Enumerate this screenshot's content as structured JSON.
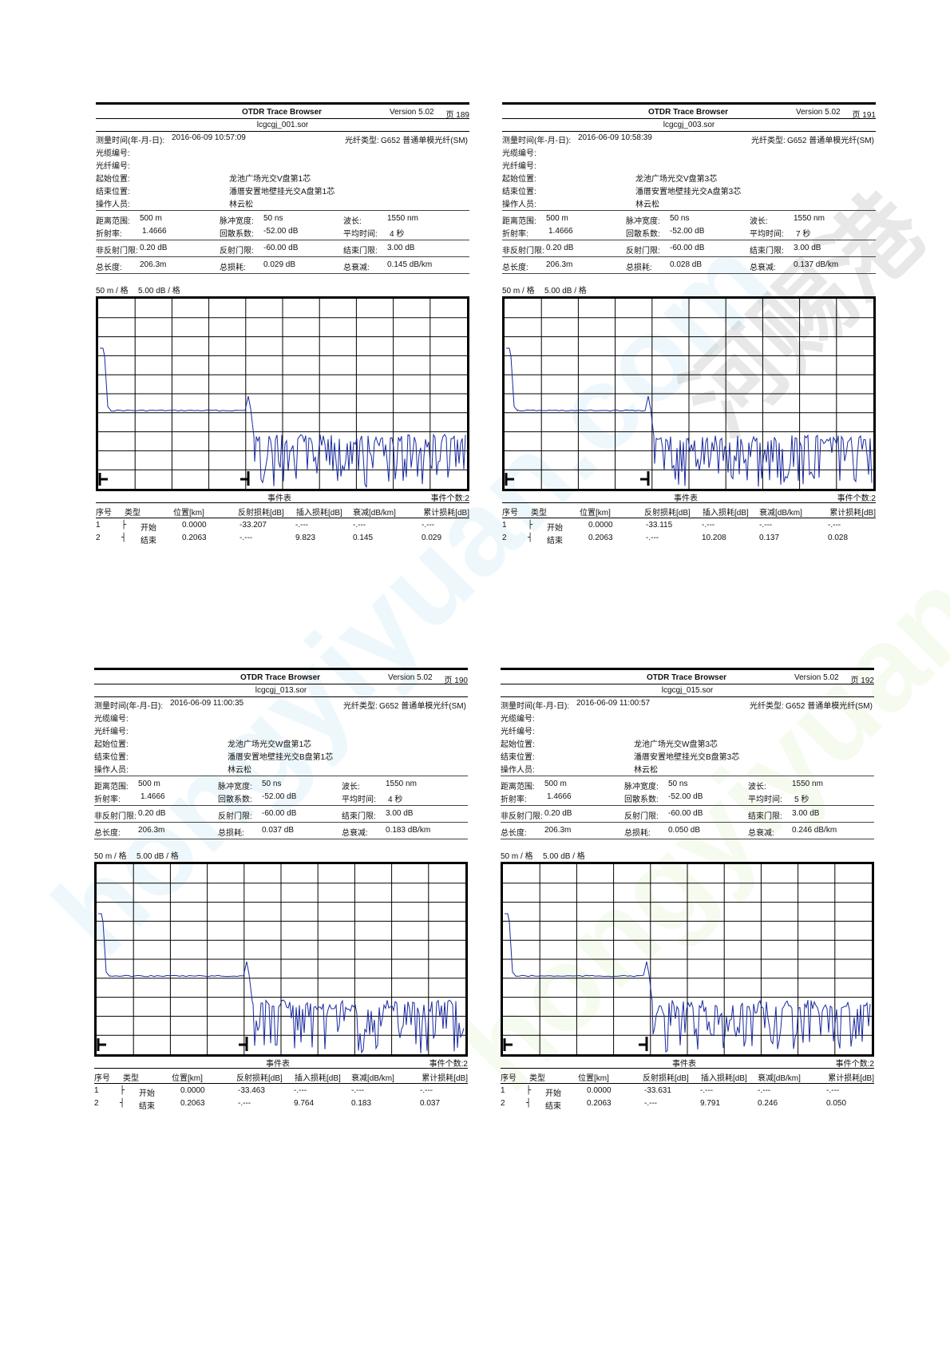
{
  "reports": [
    {
      "app": "OTDR Trace Browser",
      "version": "Version 5.02",
      "page": "页 189",
      "file": "lcgcgj_001.sor",
      "time_label": "测量时间(年-月-日):",
      "time_value": "2016-06-09  10:57:09",
      "fiber_type_label": "光纤类型:",
      "fiber_type_value": "G652 普通单模光纤(SM)",
      "cable_no_label": "光缆编号:",
      "fiber_no_label": "光纤编号:",
      "start_label": "起始位置:",
      "start_value": "龙池广场光交V盘第1芯",
      "end_label": "结束位置:",
      "end_value": "潘厝安置地壁挂光交A盘第1芯",
      "operator_label": "操作人员:",
      "operator_value": "林云松",
      "range_label": "距离范围:",
      "range_value": "500 m",
      "pulse_label": "脉冲宽度:",
      "pulse_value": "50 ns",
      "wave_label": "波长:",
      "wave_value": "1550 nm",
      "ior_label": "折射率:",
      "ior_value": "1.4666",
      "bs_label": "回散系数:",
      "bs_value": "-52.00 dB",
      "avg_label": "平均时间:",
      "avg_value": "4 秒",
      "nonrefl_label": "非反射门限:",
      "nonrefl_value": "0.20 dB",
      "refl_label": "反射门限:",
      "refl_value": "-60.00 dB",
      "endth_label": "结束门限:",
      "endth_value": "3.00 dB",
      "len_label": "总长度:",
      "len_value": "206.3m",
      "loss_label": "总损耗:",
      "loss_value": "0.029 dB",
      "att_label": "总衰减:",
      "att_value": "0.145 dB/km",
      "scale_x": "50 m / 格",
      "scale_y": "5.00 dB / 格",
      "event_table_label": "事件表",
      "event_count": "事件个数:2",
      "headers": [
        "序号",
        "类型",
        "位置[km]",
        "反射损耗[dB]",
        "插入损耗[dB]",
        "衰减[dB/km]",
        "累计损耗[dB]"
      ],
      "events": [
        {
          "no": "1",
          "type": "开始",
          "pos": "0.0000",
          "refl": "-33.207",
          "ins": "-.---",
          "att": "-.---",
          "cum": "-.---"
        },
        {
          "no": "2",
          "type": "结束",
          "pos": "0.2063",
          "refl": "-.---",
          "ins": "9.823",
          "att": "0.145",
          "cum": "0.029"
        }
      ]
    },
    {
      "app": "OTDR Trace Browser",
      "version": "Version 5.02",
      "page": "页 191",
      "file": "lcgcgj_003.sor",
      "time_label": "测量时间(年-月-日):",
      "time_value": "2016-06-09  10:58:39",
      "fiber_type_label": "光纤类型:",
      "fiber_type_value": "G652 普通单模光纤(SM)",
      "cable_no_label": "光缆编号:",
      "fiber_no_label": "光纤编号:",
      "start_label": "起始位置:",
      "start_value": "龙池广场光交V盘第3芯",
      "end_label": "结束位置:",
      "end_value": "潘厝安置地壁挂光交A盘第3芯",
      "operator_label": "操作人员:",
      "operator_value": "林云松",
      "range_label": "距离范围:",
      "range_value": "500 m",
      "pulse_label": "脉冲宽度:",
      "pulse_value": "50 ns",
      "wave_label": "波长:",
      "wave_value": "1550 nm",
      "ior_label": "折射率:",
      "ior_value": "1.4666",
      "bs_label": "回散系数:",
      "bs_value": "-52.00 dB",
      "avg_label": "平均时间:",
      "avg_value": "7 秒",
      "nonrefl_label": "非反射门限:",
      "nonrefl_value": "0.20 dB",
      "refl_label": "反射门限:",
      "refl_value": "-60.00 dB",
      "endth_label": "结束门限:",
      "endth_value": "3.00 dB",
      "len_label": "总长度:",
      "len_value": "206.3m",
      "loss_label": "总损耗:",
      "loss_value": "0.028 dB",
      "att_label": "总衰减:",
      "att_value": "0.137 dB/km",
      "scale_x": "50 m / 格",
      "scale_y": "5.00 dB / 格",
      "event_table_label": "事件表",
      "event_count": "事件个数:2",
      "headers": [
        "序号",
        "类型",
        "位置[km]",
        "反射损耗[dB]",
        "插入损耗[dB]",
        "衰减[dB/km]",
        "累计损耗[dB]"
      ],
      "events": [
        {
          "no": "1",
          "type": "开始",
          "pos": "0.0000",
          "refl": "-33.115",
          "ins": "-.---",
          "att": "-.---",
          "cum": "-.---"
        },
        {
          "no": "2",
          "type": "结束",
          "pos": "0.2063",
          "refl": "-.---",
          "ins": "10.208",
          "att": "0.137",
          "cum": "0.028"
        }
      ]
    },
    {
      "app": "OTDR Trace Browser",
      "version": "Version 5.02",
      "page": "页 190",
      "file": "lcgcgj_013.sor",
      "time_label": "测量时间(年-月-日):",
      "time_value": "2016-06-09  11:00:35",
      "fiber_type_label": "光纤类型:",
      "fiber_type_value": "G652 普通单模光纤(SM)",
      "cable_no_label": "光缆编号:",
      "fiber_no_label": "光纤编号:",
      "start_label": "起始位置:",
      "start_value": "龙池广场光交W盘第1芯",
      "end_label": "结束位置:",
      "end_value": "潘厝安置地壁挂光交B盘第1芯",
      "operator_label": "操作人员:",
      "operator_value": "林云松",
      "range_label": "距离范围:",
      "range_value": "500 m",
      "pulse_label": "脉冲宽度:",
      "pulse_value": "50 ns",
      "wave_label": "波长:",
      "wave_value": "1550 nm",
      "ior_label": "折射率:",
      "ior_value": "1.4666",
      "bs_label": "回散系数:",
      "bs_value": "-52.00 dB",
      "avg_label": "平均时间:",
      "avg_value": "4 秒",
      "nonrefl_label": "非反射门限:",
      "nonrefl_value": "0.20 dB",
      "refl_label": "反射门限:",
      "refl_value": "-60.00 dB",
      "endth_label": "结束门限:",
      "endth_value": "3.00 dB",
      "len_label": "总长度:",
      "len_value": "206.3m",
      "loss_label": "总损耗:",
      "loss_value": "0.037 dB",
      "att_label": "总衰减:",
      "att_value": "0.183 dB/km",
      "scale_x": "50 m / 格",
      "scale_y": "5.00 dB / 格",
      "event_table_label": "事件表",
      "event_count": "事件个数:2",
      "headers": [
        "序号",
        "类型",
        "位置[km]",
        "反射损耗[dB]",
        "插入损耗[dB]",
        "衰减[dB/km]",
        "累计损耗[dB]"
      ],
      "events": [
        {
          "no": "1",
          "type": "开始",
          "pos": "0.0000",
          "refl": "-33.463",
          "ins": "-.---",
          "att": "-.---",
          "cum": "-.---"
        },
        {
          "no": "2",
          "type": "结束",
          "pos": "0.2063",
          "refl": "-.---",
          "ins": "9.764",
          "att": "0.183",
          "cum": "0.037"
        }
      ]
    },
    {
      "app": "OTDR Trace Browser",
      "version": "Version 5.02",
      "page": "页 192",
      "file": "lcgcgj_015.sor",
      "time_label": "测量时间(年-月-日):",
      "time_value": "2016-06-09  11:00:57",
      "fiber_type_label": "光纤类型:",
      "fiber_type_value": "G652 普通单模光纤(SM)",
      "cable_no_label": "光缆编号:",
      "fiber_no_label": "光纤编号:",
      "start_label": "起始位置:",
      "start_value": "龙池广场光交W盘第3芯",
      "end_label": "结束位置:",
      "end_value": "潘厝安置地壁挂光交B盘第3芯",
      "operator_label": "操作人员:",
      "operator_value": "林云松",
      "range_label": "距离范围:",
      "range_value": "500 m",
      "pulse_label": "脉冲宽度:",
      "pulse_value": "50 ns",
      "wave_label": "波长:",
      "wave_value": "1550 nm",
      "ior_label": "折射率:",
      "ior_value": "1.4666",
      "bs_label": "回散系数:",
      "bs_value": "-52.00 dB",
      "avg_label": "平均时间:",
      "avg_value": "5 秒",
      "nonrefl_label": "非反射门限:",
      "nonrefl_value": "0.20 dB",
      "refl_label": "反射门限:",
      "refl_value": "-60.00 dB",
      "endth_label": "结束门限:",
      "endth_value": "3.00 dB",
      "len_label": "总长度:",
      "len_value": "206.3m",
      "loss_label": "总损耗:",
      "loss_value": "0.050 dB",
      "att_label": "总衰减:",
      "att_value": "0.246 dB/km",
      "scale_x": "50 m / 格",
      "scale_y": "5.00 dB / 格",
      "event_table_label": "事件表",
      "event_count": "事件个数:2",
      "headers": [
        "序号",
        "类型",
        "位置[km]",
        "反射损耗[dB]",
        "插入损耗[dB]",
        "衰减[dB/km]",
        "累计损耗[dB]"
      ],
      "events": [
        {
          "no": "1",
          "type": "开始",
          "pos": "0.0000",
          "refl": "-33.631",
          "ins": "-.---",
          "att": "-.---",
          "cum": "-.---"
        },
        {
          "no": "2",
          "type": "结束",
          "pos": "0.2063",
          "refl": "-.---",
          "ins": "9.791",
          "att": "0.246",
          "cum": "0.050"
        }
      ]
    }
  ],
  "colors": {
    "trace": "#1a2aa0",
    "grid": "#000000"
  },
  "watermarks": [
    "hongyiyuan.com",
    "河赐港"
  ]
}
